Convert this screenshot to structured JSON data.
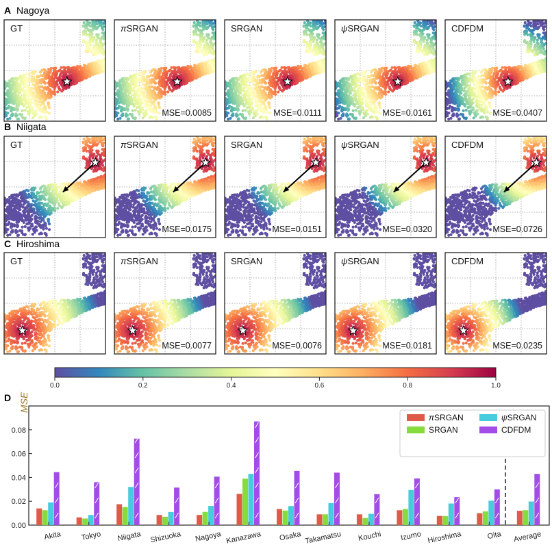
{
  "colors": {
    "piSRGAN": "#e05a4a",
    "SRGAN": "#86dc3c",
    "psiSRGAN": "#46ccdc",
    "CDFDM": "#a24ee6",
    "mse_label": "#a07828"
  },
  "sections": [
    {
      "letter": "A",
      "city": "Nagoya",
      "star": [
        0.62,
        0.61
      ],
      "arrow": null,
      "mse": [
        "MSE=0.0085",
        "MSE=0.0111",
        "MSE=0.0161",
        "MSE=0.0407"
      ]
    },
    {
      "letter": "B",
      "city": "Niigata",
      "star": [
        0.9,
        0.26
      ],
      "arrow": [
        0.9,
        0.26,
        0.58,
        0.55
      ],
      "mse": [
        "MSE=0.0175",
        "MSE=0.0151",
        "MSE=0.0320",
        "MSE=0.0726"
      ]
    },
    {
      "letter": "C",
      "city": "Hiroshima",
      "star": [
        0.18,
        0.77
      ],
      "arrow": null,
      "mse": [
        "MSE=0.0077",
        "MSE=0.0076",
        "MSE=0.0181",
        "MSE=0.0235"
      ]
    }
  ],
  "panel_titles": [
    "GT",
    "SRGAN",
    "SRGAN",
    "SRGAN",
    "CDFDM"
  ],
  "panel_prefixes": [
    "",
    "π",
    "",
    "ψ",
    ""
  ],
  "colorbar": {
    "ticks": [
      "0.0",
      "0.2",
      "0.4",
      "0.6",
      "0.8",
      "1.0"
    ],
    "stops": [
      "#5e4fa2",
      "#3288bd",
      "#66c2a5",
      "#abdda4",
      "#e6f598",
      "#ffffbf",
      "#fee08b",
      "#fdae61",
      "#f46d43",
      "#d53e4f",
      "#9e0142"
    ]
  },
  "chart_data": {
    "type": "bar",
    "panel_letter": "D",
    "ylabel": "MSE",
    "ylim": [
      0,
      0.1
    ],
    "yticks": [
      "0.00",
      "0.02",
      "0.04",
      "0.06",
      "0.08"
    ],
    "categories": [
      "Akita",
      "Tokyo",
      "Niigata",
      "Shizuoka",
      "Nagoya",
      "Kanazawa",
      "Osaka",
      "Takamatsu",
      "Kouchi",
      "Izumo",
      "Hiroshima",
      "Oita",
      "Average"
    ],
    "series": [
      {
        "name": "πSRGAN",
        "values": [
          0.014,
          0.0065,
          0.0175,
          0.0085,
          0.0085,
          0.0262,
          0.0135,
          0.009,
          0.009,
          0.0125,
          0.0077,
          0.01,
          0.012
        ]
      },
      {
        "name": "SRGAN",
        "values": [
          0.0125,
          0.0055,
          0.0151,
          0.007,
          0.0111,
          0.039,
          0.0122,
          0.009,
          0.006,
          0.0135,
          0.0076,
          0.0115,
          0.0125
        ]
      },
      {
        "name": "ψSRGAN",
        "values": [
          0.019,
          0.0085,
          0.032,
          0.011,
          0.0161,
          0.043,
          0.016,
          0.0185,
          0.0095,
          0.0295,
          0.0181,
          0.0205,
          0.0198
        ]
      },
      {
        "name": "CDFDM",
        "values": [
          0.0445,
          0.036,
          0.0726,
          0.0315,
          0.0407,
          0.087,
          0.0455,
          0.044,
          0.026,
          0.0392,
          0.0235,
          0.03,
          0.043
        ]
      }
    ],
    "legend_position": "top-right",
    "grid": false
  }
}
